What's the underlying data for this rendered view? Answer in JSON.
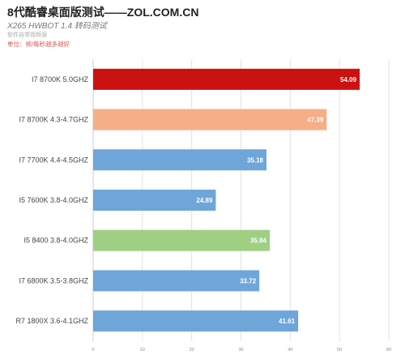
{
  "header": {
    "title": "8代酷睿桌面版测试——ZOL.COM.CN",
    "subtitle": "X265 HWBOT 1.4 转码测试",
    "note": "软件自带视频源",
    "unit": "单位：帧/每秒越多越好"
  },
  "chart_data": {
    "type": "bar",
    "orientation": "horizontal",
    "title": "8代酷睿桌面版测试——ZOL.COM.CN",
    "subtitle": "X265 HWBOT 1.4 转码测试",
    "xlabel": "",
    "ylabel": "",
    "xlim": [
      0,
      60
    ],
    "xticks": [
      0,
      10,
      20,
      30,
      40,
      50,
      60
    ],
    "grid": true,
    "categories": [
      "I7 8700K 5.0GHZ",
      "I7 8700K 4.3-4.7GHZ",
      "I7 7700K  4.4-4.5GHZ",
      "I5 7600K 3.8-4.0GHZ",
      "I5 8400  3.8-4.0GHZ",
      "I7 6800K 3.5-3.8GHZ",
      "R7 1800X 3.6-4.1GHZ"
    ],
    "values": [
      54.09,
      47.39,
      35.18,
      24.89,
      35.84,
      33.72,
      41.61
    ],
    "colors": [
      "#cc1111",
      "#f5ae85",
      "#6fa6da",
      "#6fa6da",
      "#9fcf82",
      "#6fa6da",
      "#6fa6da"
    ]
  }
}
